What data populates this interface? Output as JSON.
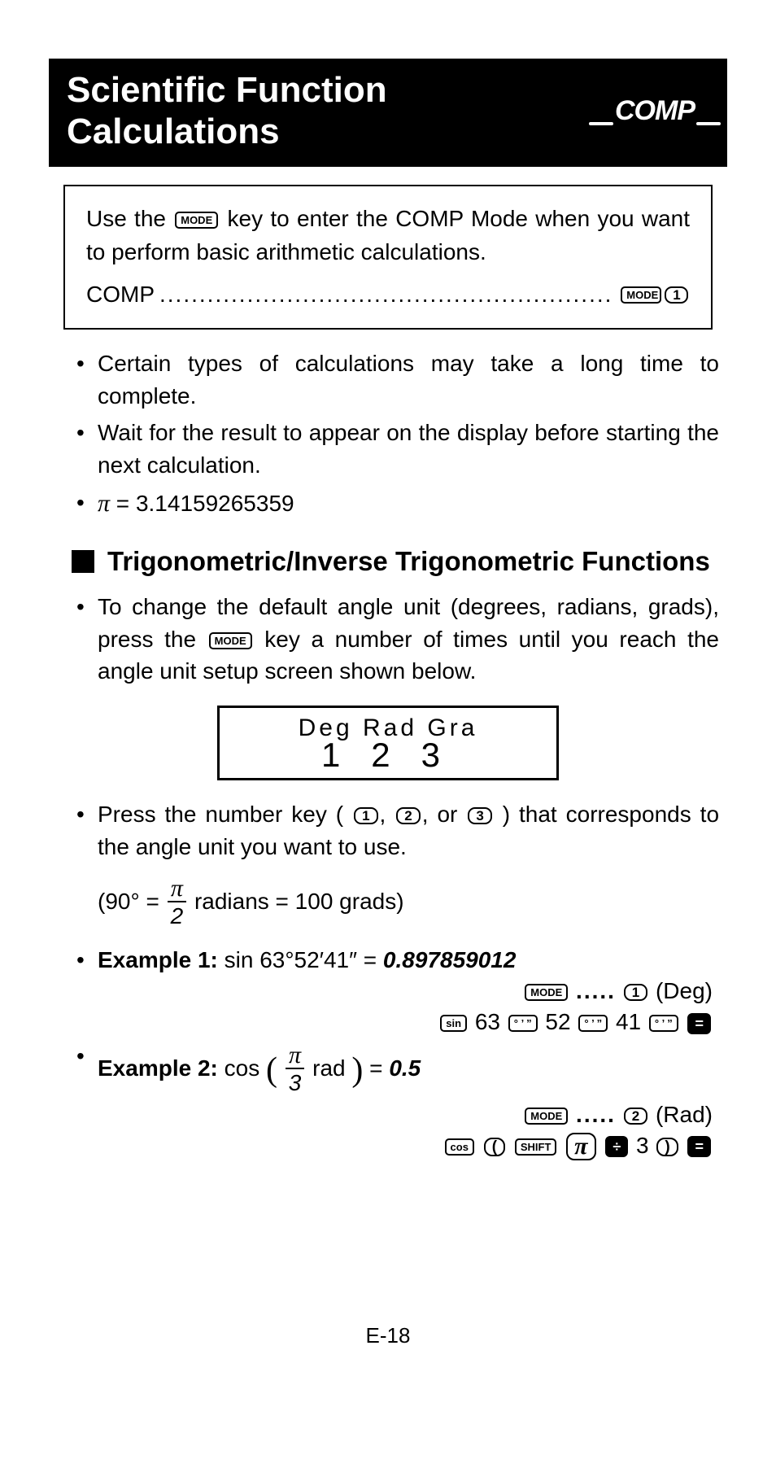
{
  "header": {
    "title_line1": "Scientific Function",
    "title_line2": "Calculations",
    "badge": "COMP"
  },
  "info_box": {
    "text_before_key": "Use the ",
    "mode_key": "MODE",
    "text_after_key": " key to enter the COMP Mode when you want to perform basic arithmetic calculations.",
    "comp_label": "COMP",
    "dots": "..............................................................",
    "comp_key1": "MODE",
    "comp_key2": "1"
  },
  "bullets_top": [
    "Certain types of calculations may take a long time to complete.",
    "Wait for the result to appear on the display before starting the next calculation."
  ],
  "pi_line": {
    "pi": "π",
    "eq": " = 3.14159265359"
  },
  "section": "Trigonometric/Inverse Trigonometric Functions",
  "trig_bullet": {
    "before": "To change the default angle unit (degrees, radians, grads), press the ",
    "key": "MODE",
    "after": " key a number of times until you reach the angle unit setup screen shown below."
  },
  "lcd": {
    "row1": "Deg  Rad  Gra",
    "row2": "123"
  },
  "press_bullet": {
    "before": "Press the number key ( ",
    "k1": "1",
    "k2": "2",
    "k3": "3",
    "mid1": ", ",
    "mid2": ", or ",
    "after": " ) that corresponds to the angle unit you want to use."
  },
  "conv_note": {
    "open": "(90° = ",
    "frac_num": "π",
    "frac_den": "2",
    "close": " radians = 100 grads)"
  },
  "ex1": {
    "label": "Example 1:",
    "expr": " sin 63°52′41″ = ",
    "result": "0.897859012",
    "seq1": {
      "mode": "MODE",
      "dots": ".....",
      "one": "1",
      "unit": "(Deg)"
    },
    "seq2": {
      "sin": "sin",
      "n1": "63",
      "dms": "° ’ ”",
      "n2": "52",
      "n3": "41",
      "eq": "="
    }
  },
  "ex2": {
    "label": "Example 2:",
    "cos": " cos ",
    "frac_num": "π",
    "frac_den": "3",
    "rad": " rad",
    "eq": "= ",
    "result": "0.5",
    "seq1": {
      "mode": "MODE",
      "dots": ".....",
      "two": "2",
      "unit": "(Rad)"
    },
    "seq2": {
      "cos": "cos",
      "lp": "(",
      "shift": "SHIFT",
      "pi": "π",
      "div": "÷",
      "three": "3",
      "rp": ")",
      "eq": "="
    }
  },
  "page_num": "E-18",
  "colors": {
    "bg": "#ffffff",
    "fg": "#000000"
  }
}
